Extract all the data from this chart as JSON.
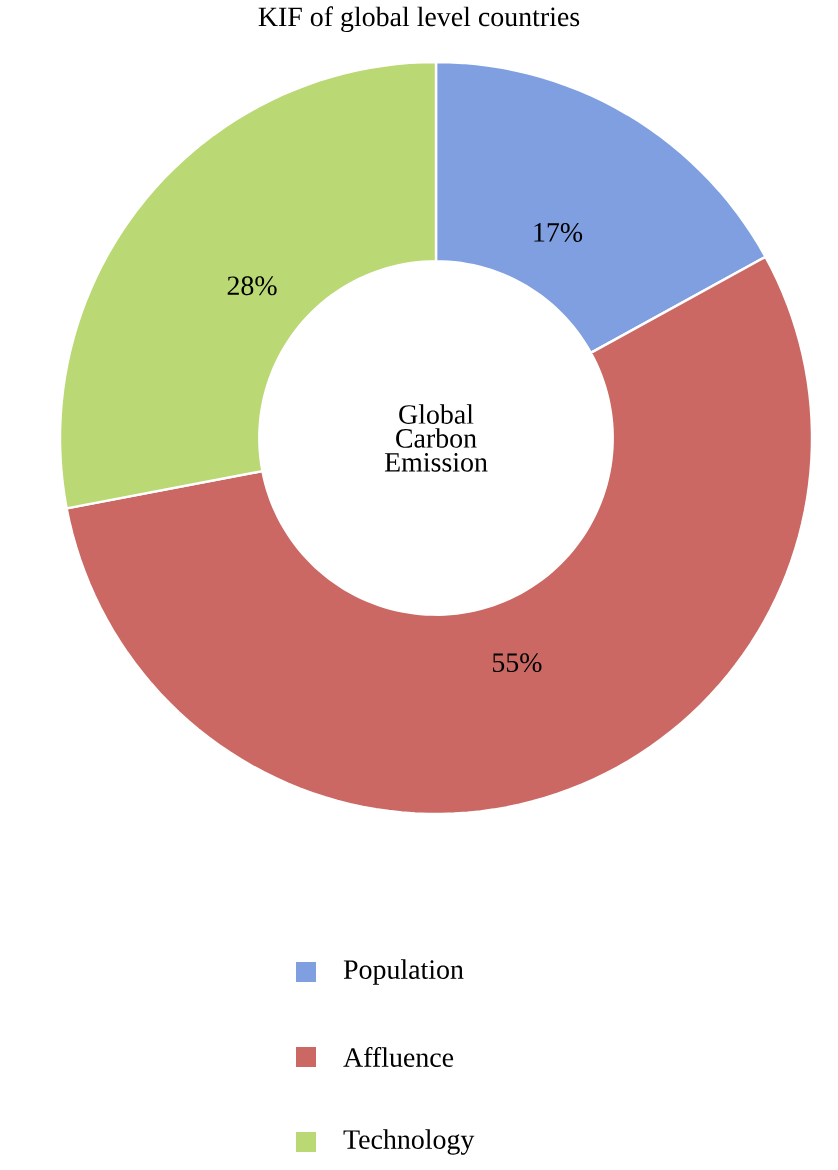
{
  "chart_data": {
    "type": "donut",
    "title": "KIF of global level countries",
    "categories": [
      "Population",
      "Affluence",
      "Technology"
    ],
    "values": [
      17,
      55,
      28
    ],
    "value_labels": [
      "17%",
      "55%",
      "28%"
    ],
    "colors": [
      "#7f9fe0",
      "#cb6864",
      "#bad873"
    ],
    "annotations": [
      "Global Carbon Emission"
    ],
    "legend": "bottom"
  }
}
